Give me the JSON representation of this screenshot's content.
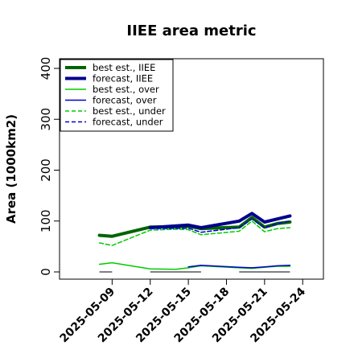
{
  "chart_data": {
    "type": "line",
    "title": "IIEE area metric",
    "xlabel": "",
    "ylabel": "Area (1000km2)",
    "x_ticks": [
      "2025-05-09",
      "2025-05-12",
      "2025-05-15",
      "2025-05-18",
      "2025-05-21",
      "2025-05-24"
    ],
    "highlight_tick": "2025-05-15",
    "highlight_color": "#228b22",
    "xlim": [
      "2025-05-06",
      "2025-05-25"
    ],
    "ylim": [
      0,
      400
    ],
    "y_ticks": [
      0,
      100,
      200,
      300,
      400
    ],
    "legend_position": "top-left",
    "grid": false,
    "series": [
      {
        "name": "best est., IIEE",
        "color": "#006400",
        "width": 4,
        "dash": "",
        "x": [
          "2025-05-08",
          "2025-05-09",
          "2025-05-12",
          "2025-05-14",
          "2025-05-15",
          "2025-05-16",
          "2025-05-19",
          "2025-05-20",
          "2025-05-21",
          "2025-05-22",
          "2025-05-23"
        ],
        "y": [
          72,
          70,
          88,
          89,
          90,
          85,
          88,
          107,
          88,
          95,
          98
        ]
      },
      {
        "name": "forecast, IIEE",
        "color": "#00008b",
        "width": 4,
        "dash": "",
        "x": [
          "2025-05-12",
          "2025-05-15",
          "2025-05-16",
          "2025-05-19",
          "2025-05-20",
          "2025-05-21",
          "2025-05-22",
          "2025-05-23"
        ],
        "y": [
          87,
          92,
          87,
          100,
          115,
          98,
          104,
          110
        ]
      },
      {
        "name": "best est., over",
        "color": "#00cc00",
        "width": 1.5,
        "dash": "",
        "x": [
          "2025-05-08",
          "2025-05-09",
          "2025-05-12",
          "2025-05-14",
          "2025-05-15",
          "2025-05-16",
          "2025-05-19",
          "2025-05-20",
          "2025-05-21",
          "2025-05-22",
          "2025-05-23"
        ],
        "y": [
          15,
          18,
          6,
          5,
          8,
          12,
          8,
          7,
          9,
          11,
          11
        ]
      },
      {
        "name": "forecast, over",
        "color": "#0000cd",
        "width": 1.5,
        "dash": "",
        "x": [
          "2025-05-15",
          "2025-05-16",
          "2025-05-19",
          "2025-05-20",
          "2025-05-21",
          "2025-05-22",
          "2025-05-23"
        ],
        "y": [
          10,
          13,
          9,
          8,
          10,
          12,
          13
        ]
      },
      {
        "name": "best est., under",
        "color": "#00cc00",
        "width": 1.5,
        "dash": "5,3",
        "x": [
          "2025-05-08",
          "2025-05-09",
          "2025-05-12",
          "2025-05-14",
          "2025-05-15",
          "2025-05-16",
          "2025-05-19",
          "2025-05-20",
          "2025-05-21",
          "2025-05-22",
          "2025-05-23"
        ],
        "y": [
          57,
          52,
          82,
          84,
          83,
          73,
          80,
          100,
          79,
          85,
          87
        ]
      },
      {
        "name": "forecast, under",
        "color": "#0000cd",
        "width": 1.5,
        "dash": "5,3",
        "x": [
          "2025-05-12",
          "2025-05-15",
          "2025-05-16",
          "2025-05-19",
          "2025-05-20",
          "2025-05-21",
          "2025-05-22",
          "2025-05-23"
        ],
        "y": [
          85,
          86,
          78,
          87,
          104,
          87,
          95,
          100
        ]
      }
    ],
    "baseline_segments": {
      "color": "#808080",
      "y": 0,
      "ranges": [
        [
          "2025-05-08",
          "2025-05-09"
        ],
        [
          "2025-05-12",
          "2025-05-16"
        ],
        [
          "2025-05-19",
          "2025-05-23"
        ]
      ]
    }
  }
}
